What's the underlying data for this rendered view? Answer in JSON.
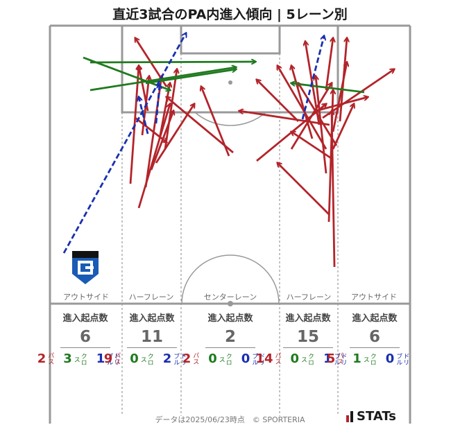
{
  "title": "直近3試合のPA内進入傾向 | 5レーン別",
  "lanes": [
    {
      "label": "アウトサイド",
      "total": "6",
      "pass": "2",
      "cross": "3",
      "dribble": "1"
    },
    {
      "label": "ハーフレーン",
      "total": "11",
      "pass": "9",
      "cross": "0",
      "dribble": "2"
    },
    {
      "label": "センターレーン",
      "total": "2",
      "pass": "2",
      "cross": "0",
      "dribble": "0"
    },
    {
      "label": "ハーフレーン",
      "total": "15",
      "pass": "14",
      "cross": "0",
      "dribble": "1"
    },
    {
      "label": "アウトサイド",
      "total": "6",
      "pass": "5",
      "cross": "1",
      "dribble": "0"
    }
  ],
  "labels": {
    "entry_count": "進入起点数",
    "pass": "パス",
    "cross": "クロス",
    "dribble": "ドリブル"
  },
  "footer": "データは2025/06/23時点　© SPORTERIA",
  "brand": "STATs",
  "colors": {
    "pass": "#b3242a",
    "cross": "#1f7a1f",
    "dribble": "#1a2fb0",
    "line": "#999999"
  },
  "team_crest": "gamba-osaka-crest"
}
